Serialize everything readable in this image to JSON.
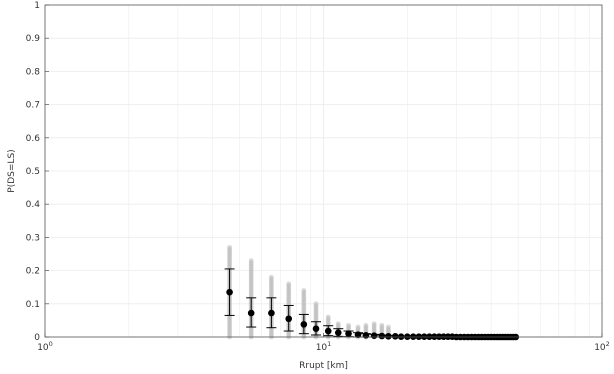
{
  "chart_data": {
    "type": "scatter",
    "xlabel": "Rrupt [km]",
    "ylabel": "P(DS=LS)",
    "xscale": "log",
    "xlim": [
      1,
      100
    ],
    "ylim": [
      0,
      1
    ],
    "grid": true,
    "x_ticks": [
      {
        "value": 1,
        "base": "10",
        "exp": "0"
      },
      {
        "value": 10,
        "base": "10",
        "exp": "1"
      },
      {
        "value": 100,
        "base": "10",
        "exp": "2"
      }
    ],
    "y_ticks": [
      {
        "value": 0,
        "label": "0"
      },
      {
        "value": 0.1,
        "label": "0.1"
      },
      {
        "value": 0.2,
        "label": "0.2"
      },
      {
        "value": 0.3,
        "label": "0.3"
      },
      {
        "value": 0.4,
        "label": "0.4"
      },
      {
        "value": 0.5,
        "label": "0.5"
      },
      {
        "value": 0.6,
        "label": "0.6"
      },
      {
        "value": 0.7,
        "label": "0.7"
      },
      {
        "value": 0.8,
        "label": "0.8"
      },
      {
        "value": 0.9,
        "label": "0.9"
      },
      {
        "value": 1,
        "label": "1"
      }
    ],
    "colors": {
      "samples": "#b8b8b8",
      "mean": "#000000",
      "grid": "#ececec",
      "axis": "#555555"
    },
    "series": [
      {
        "style": "gray-samples",
        "x": [
          4.6,
          5.5,
          6.5,
          7.5,
          8.5,
          9.4,
          10.4,
          11.3,
          12.3,
          13.3,
          14.2,
          15.2,
          16.2,
          17.1
        ],
        "lower": [
          0.0,
          0.0,
          0.0,
          0.0,
          0.0,
          0.0,
          0.0,
          0.0,
          0.0,
          0.0,
          0.0,
          0.0,
          0.0,
          0.0
        ],
        "upper": [
          0.27,
          0.23,
          0.18,
          0.16,
          0.14,
          0.1,
          0.06,
          0.04,
          0.035,
          0.03,
          0.035,
          0.04,
          0.035,
          0.03
        ]
      },
      {
        "style": "mean-with-errorbars",
        "x": [
          4.6,
          5.5,
          6.5,
          7.5,
          8.5,
          9.4,
          10.4,
          11.3,
          12.3,
          13.3,
          14.2,
          15.2,
          16.2,
          17.1,
          18.1,
          19.0,
          20.0,
          21.0,
          22.0,
          23.0,
          24.0,
          25.0,
          26.0,
          27.0,
          28.0,
          29.0,
          30.0,
          31.0,
          32.0,
          33.0,
          34.0,
          35.0,
          36.0,
          37.0,
          38.0,
          39.0,
          40.0,
          41.0,
          42.0,
          43.0,
          44.0,
          45.0,
          46.0,
          47.0,
          48.0,
          49.0
        ],
        "y": [
          0.135,
          0.072,
          0.072,
          0.055,
          0.038,
          0.025,
          0.018,
          0.013,
          0.01,
          0.007,
          0.005,
          0.004,
          0.003,
          0.002,
          0.002,
          0.001,
          0.001,
          0.001,
          0.001,
          0.001,
          0.001,
          0.001,
          0.001,
          0.001,
          0.001,
          0.001,
          0.0,
          0.0,
          0.0,
          0.0,
          0.0,
          0.0,
          0.0,
          0.0,
          0.0,
          0.0,
          0.0,
          0.0,
          0.0,
          0.0,
          0.0,
          0.0,
          0.0,
          0.0,
          0.0,
          0.0
        ],
        "err_low": [
          0.065,
          0.03,
          0.028,
          0.018,
          0.01,
          0.006,
          0.004,
          0.002,
          0.001,
          0.0,
          0.0,
          0.0,
          0.0,
          0.0,
          0.0,
          0.0,
          0.0,
          0.0,
          0.0,
          0.0,
          0.0,
          0.0,
          0.0,
          0.0,
          0.0,
          0.0,
          0.0,
          0.0,
          0.0,
          0.0,
          0.0,
          0.0,
          0.0,
          0.0,
          0.0,
          0.0,
          0.0,
          0.0,
          0.0,
          0.0,
          0.0,
          0.0,
          0.0,
          0.0,
          0.0,
          0.0
        ],
        "err_high": [
          0.205,
          0.118,
          0.118,
          0.095,
          0.068,
          0.046,
          0.034,
          0.025,
          0.018,
          0.013,
          0.01,
          0.008,
          0.006,
          0.005,
          0.004,
          0.003,
          0.003,
          0.002,
          0.002,
          0.002,
          0.002,
          0.002,
          0.002,
          0.002,
          0.002,
          0.001,
          0.001,
          0.001,
          0.001,
          0.001,
          0.001,
          0.001,
          0.001,
          0.001,
          0.001,
          0.001,
          0.001,
          0.001,
          0.001,
          0.001,
          0.001,
          0.001,
          0.001,
          0.001,
          0.001,
          0.001
        ]
      }
    ]
  }
}
